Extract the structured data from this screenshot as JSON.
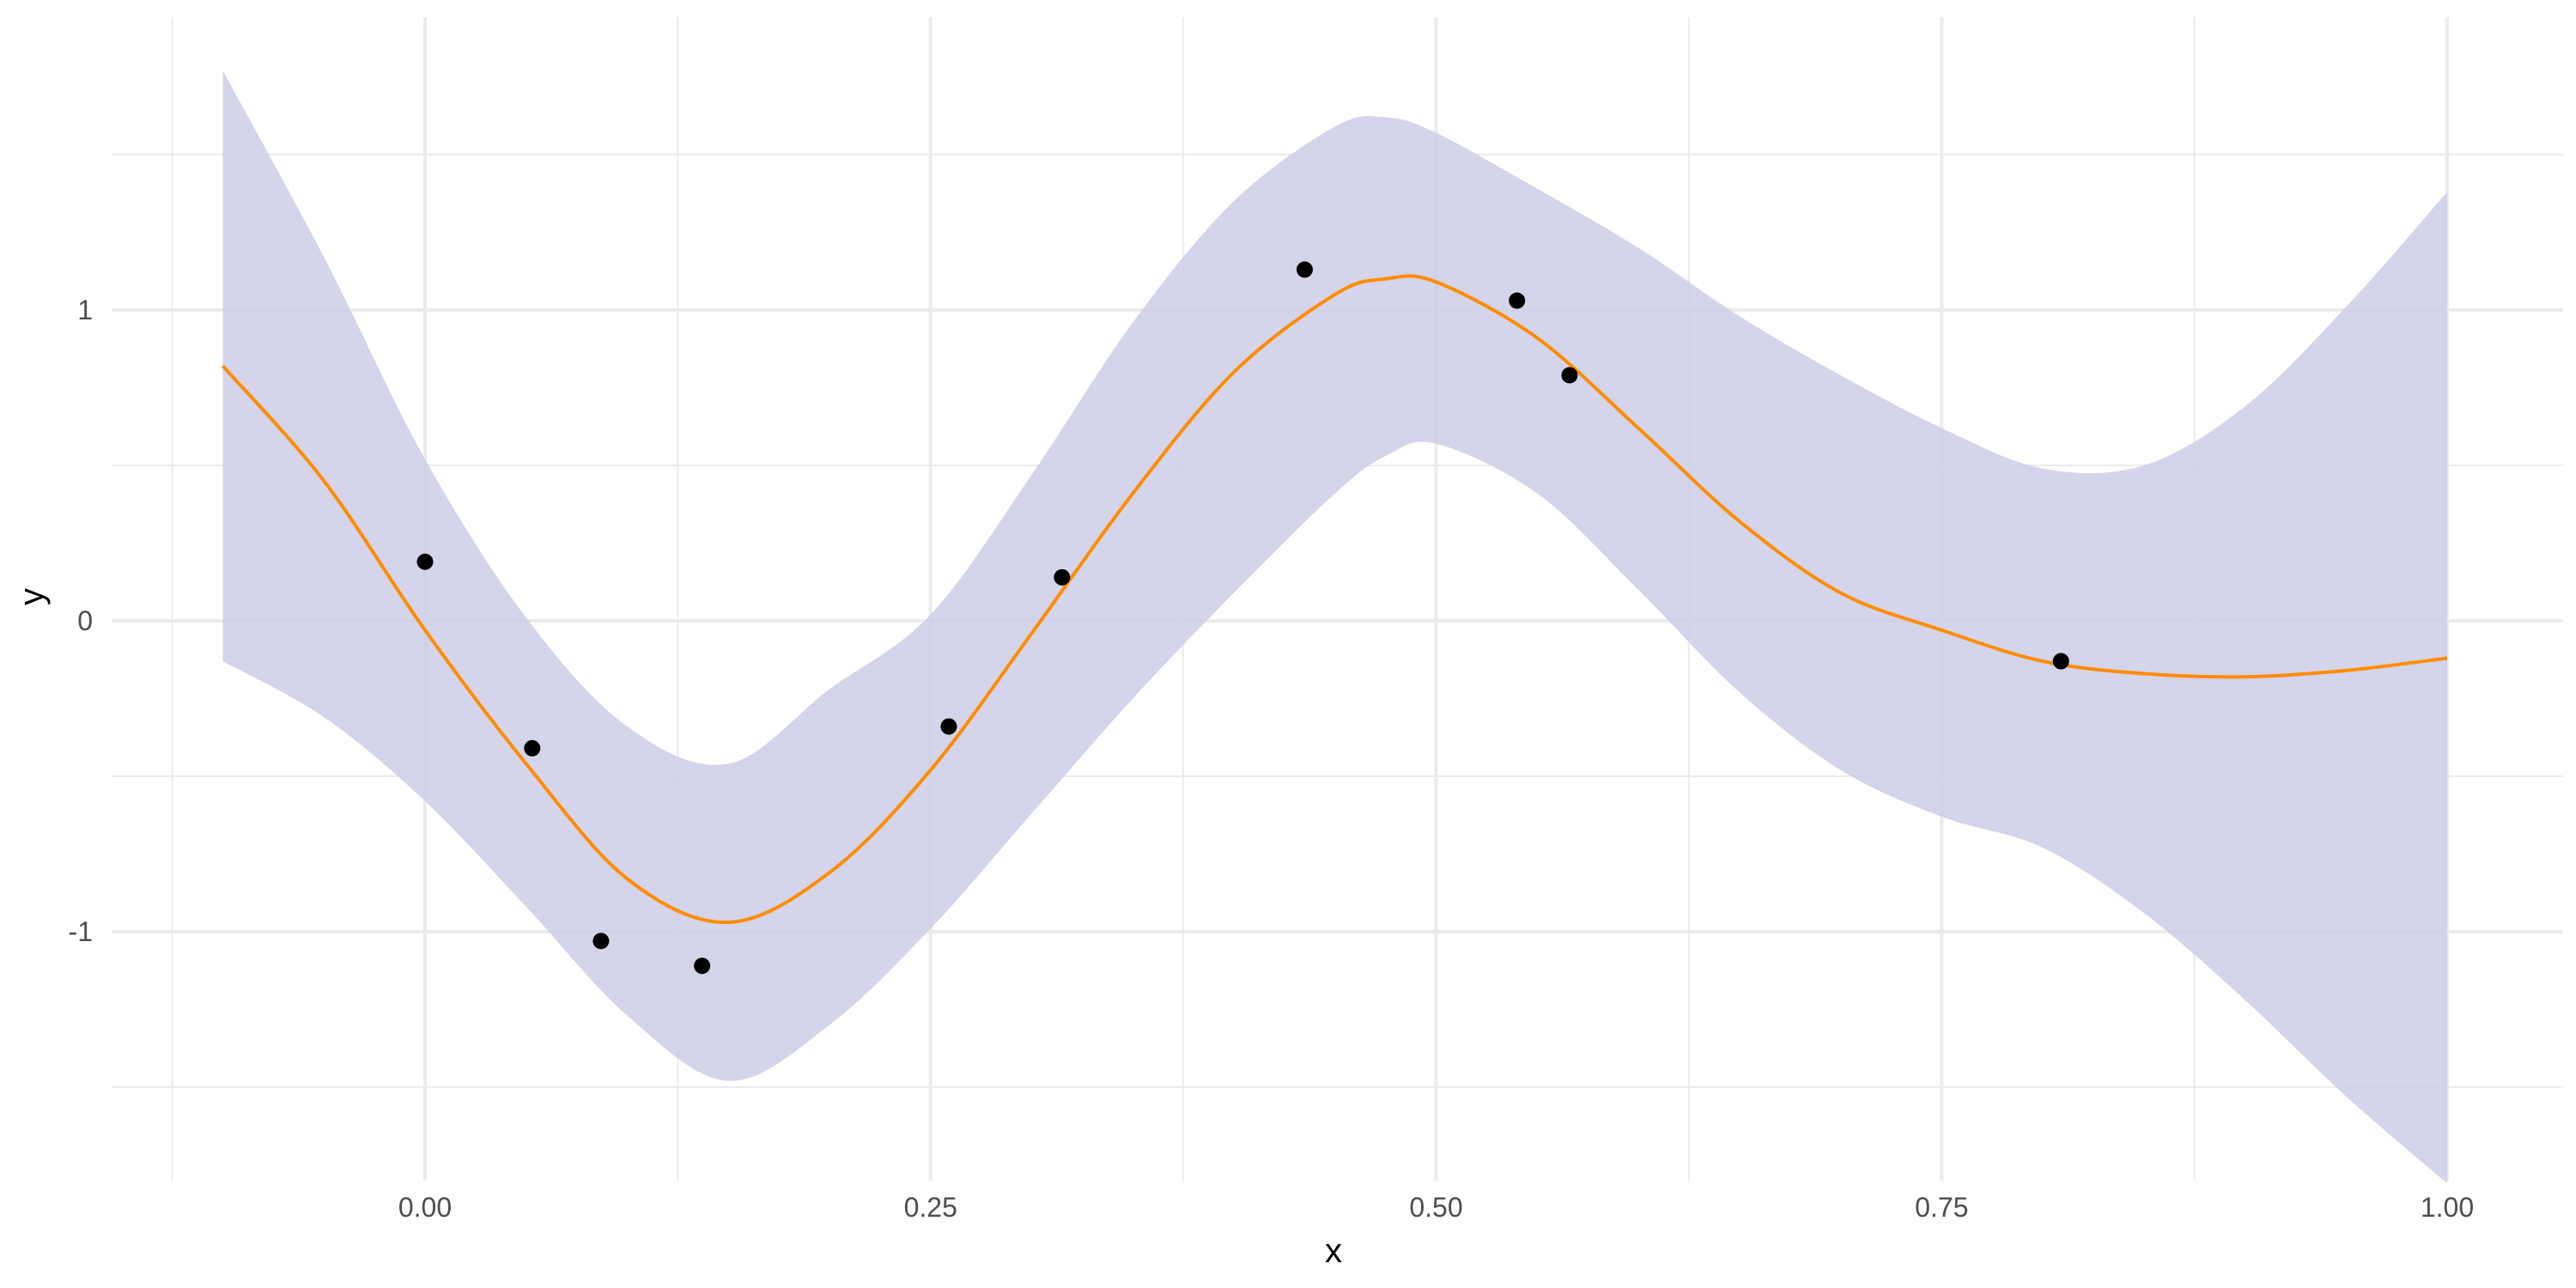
{
  "chart_data": {
    "type": "line",
    "title": "",
    "xlabel": "x",
    "ylabel": "y",
    "xlim": [
      -0.1,
      1.0
    ],
    "ylim": [
      -1.75,
      1.9
    ],
    "x_ticks": [
      0.0,
      0.25,
      0.5,
      0.75,
      1.0
    ],
    "x_tick_labels": [
      "0.00",
      "0.25",
      "0.50",
      "0.75",
      "1.00"
    ],
    "y_ticks": [
      -1,
      0,
      1
    ],
    "y_tick_labels": [
      "-1",
      "0",
      "1"
    ],
    "x_minor_ticks": [
      -0.125,
      0.125,
      0.375,
      0.625,
      0.875
    ],
    "y_minor_ticks": [
      -1.5,
      -0.5,
      0.5,
      1.5
    ],
    "grid": true,
    "legend": "none",
    "colors": {
      "line": "#ff8c00",
      "band": "#cccce6",
      "points": "#000000",
      "grid": "#ebebeb"
    },
    "series": [
      {
        "type": "ribbon",
        "x": [
          -0.1,
          -0.05,
          0.0,
          0.05,
          0.1,
          0.15,
          0.2,
          0.25,
          0.3,
          0.35,
          0.4,
          0.45,
          0.475,
          0.5,
          0.55,
          0.6,
          0.65,
          0.7,
          0.75,
          0.8,
          0.85,
          0.9,
          0.95,
          1.0
        ],
        "lower": [
          -0.13,
          -0.31,
          -0.58,
          -0.92,
          -1.27,
          -1.48,
          -1.3,
          -0.99,
          -0.62,
          -0.25,
          0.09,
          0.41,
          0.53,
          0.57,
          0.41,
          0.1,
          -0.23,
          -0.48,
          -0.63,
          -0.73,
          -0.94,
          -1.22,
          -1.53,
          -1.81
        ],
        "upper": [
          1.77,
          1.17,
          0.52,
          0.01,
          -0.34,
          -0.46,
          -0.22,
          0.02,
          0.47,
          0.96,
          1.35,
          1.59,
          1.62,
          1.57,
          1.39,
          1.2,
          0.98,
          0.79,
          0.62,
          0.49,
          0.5,
          0.69,
          1.01,
          1.38
        ]
      },
      {
        "type": "line",
        "x": [
          -0.1,
          -0.05,
          0.0,
          0.05,
          0.1,
          0.15,
          0.2,
          0.25,
          0.3,
          0.35,
          0.4,
          0.45,
          0.475,
          0.5,
          0.55,
          0.6,
          0.65,
          0.7,
          0.75,
          0.8,
          0.85,
          0.9,
          0.95,
          1.0
        ],
        "y": [
          0.82,
          0.45,
          -0.03,
          -0.46,
          -0.83,
          -0.97,
          -0.81,
          -0.48,
          -0.04,
          0.41,
          0.8,
          1.05,
          1.1,
          1.09,
          0.91,
          0.62,
          0.32,
          0.09,
          -0.03,
          -0.13,
          -0.17,
          -0.18,
          -0.16,
          -0.12
        ]
      },
      {
        "type": "scatter",
        "x": [
          0.0,
          0.053,
          0.087,
          0.137,
          0.259,
          0.315,
          0.435,
          0.54,
          0.566,
          0.809
        ],
        "y": [
          0.19,
          -0.41,
          -1.03,
          -1.11,
          -0.34,
          0.14,
          1.13,
          1.03,
          0.79,
          -0.13
        ]
      }
    ]
  }
}
